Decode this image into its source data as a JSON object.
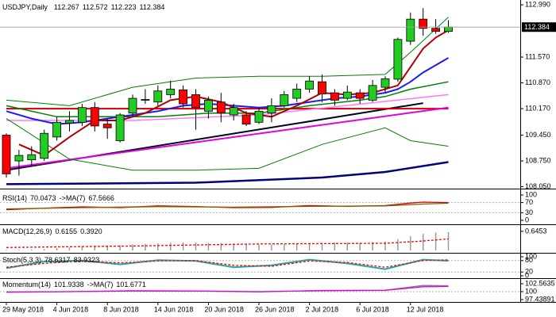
{
  "chart_data": [
    {
      "type": "candlestick",
      "title": "USDJPY,Daily",
      "categories": [
        "29 May 2018",
        null,
        null,
        null,
        "4 Jun 2018",
        null,
        null,
        null,
        "8 Jun 2018",
        null,
        null,
        null,
        "14 Jun 2018",
        null,
        null,
        null,
        "20 Jun 2018",
        null,
        null,
        null,
        "26 Jun 2018",
        null,
        null,
        null,
        "2 Jul 2018",
        null,
        null,
        null,
        "6 Jul 2018",
        null,
        null,
        null,
        "12 Jul 2018",
        null,
        null,
        null
      ],
      "open": [
        109.45,
        108.75,
        108.78,
        108.82,
        109.4,
        109.78,
        109.8,
        110.2,
        109.75,
        109.3,
        110.05,
        110.4,
        110.35,
        110.55,
        110.68,
        110.55,
        110.1,
        110.35,
        110.0,
        110.0,
        109.8,
        110.05,
        110.25,
        110.45,
        110.7,
        110.9,
        110.6,
        110.45,
        110.6,
        110.4,
        110.75,
        110.97,
        112.0,
        112.6,
        112.35,
        112.267
      ],
      "high": [
        109.5,
        109.05,
        109.15,
        109.6,
        109.95,
        110.1,
        110.3,
        110.35,
        109.9,
        110.05,
        110.55,
        110.7,
        110.8,
        110.93,
        110.8,
        110.7,
        110.5,
        110.6,
        110.3,
        110.1,
        110.2,
        110.45,
        110.65,
        110.85,
        111.05,
        111.1,
        110.7,
        110.8,
        110.7,
        110.95,
        111.05,
        112.1,
        112.78,
        112.9,
        112.6,
        112.572
      ],
      "low": [
        108.3,
        108.35,
        108.6,
        108.75,
        109.3,
        109.55,
        109.7,
        109.55,
        109.35,
        109.25,
        109.95,
        110.3,
        110.25,
        110.45,
        110.2,
        109.6,
        109.9,
        109.8,
        109.85,
        109.7,
        109.75,
        109.8,
        110.2,
        110.35,
        110.6,
        110.35,
        110.25,
        110.4,
        110.3,
        110.35,
        110.6,
        110.9,
        111.9,
        112.15,
        112.2,
        112.223
      ],
      "close": [
        108.4,
        108.9,
        108.92,
        109.5,
        109.8,
        109.85,
        110.2,
        109.7,
        109.65,
        110.0,
        110.45,
        110.42,
        110.65,
        110.7,
        110.3,
        110.2,
        110.4,
        110.05,
        110.2,
        109.75,
        110.1,
        110.25,
        110.55,
        110.7,
        110.92,
        110.57,
        110.4,
        110.62,
        110.45,
        110.8,
        110.98,
        112.05,
        112.6,
        112.35,
        112.27,
        112.384
      ],
      "up_color": "#22cc22",
      "down_color": "#ff0000",
      "ylim": [
        108.02,
        113.12
      ],
      "yticks": [
        {
          "value": 112.99,
          "label": "112.990"
        },
        {
          "value": 111.57,
          "label": "111.570"
        },
        {
          "value": 110.87,
          "label": "110.870"
        },
        {
          "value": 110.17,
          "label": "110.170"
        },
        {
          "value": 109.45,
          "label": "109.450"
        },
        {
          "value": 108.75,
          "label": "108.750"
        },
        {
          "value": 108.05,
          "label": "108.050"
        }
      ],
      "overlays": [
        {
          "color": "#000080",
          "width": 2.5,
          "x": [
            0,
            15,
            25,
            30,
            35
          ],
          "values": [
            108.12,
            108.16,
            108.3,
            108.45,
            108.72
          ]
        },
        {
          "color": "#000020",
          "width": 2,
          "x": [
            0,
            33
          ],
          "values": [
            108.5,
            110.32
          ]
        },
        {
          "color": "#cc0000",
          "width": 2,
          "x": [
            0,
            35
          ],
          "values": [
            110.17,
            110.17
          ]
        },
        {
          "color": "#e000e0",
          "width": 2,
          "x": [
            0,
            35
          ],
          "values": [
            108.55,
            110.2
          ]
        },
        {
          "color": "#ff77ff",
          "width": 1.5,
          "x": [
            0,
            10,
            20,
            35
          ],
          "values": [
            109.85,
            109.85,
            110.0,
            110.55
          ]
        },
        {
          "color": "#008000",
          "width": 1,
          "x": [
            0,
            5,
            10,
            15,
            20,
            25,
            30,
            32,
            35
          ],
          "values": [
            110.4,
            110.25,
            110.75,
            111.0,
            111.05,
            111.05,
            111.1,
            111.7,
            112.65
          ]
        },
        {
          "color": "#008000",
          "width": 1,
          "x": [
            0,
            5,
            10,
            15,
            20,
            25,
            30,
            32,
            35
          ],
          "values": [
            109.9,
            108.8,
            108.5,
            108.5,
            108.55,
            109.2,
            109.65,
            109.3,
            109.15
          ]
        },
        {
          "color": "#008000",
          "width": 1.5,
          "x": [
            0,
            4,
            8,
            12,
            16,
            20,
            24,
            28,
            30,
            32,
            35
          ],
          "values": [
            110.25,
            109.95,
            109.95,
            109.95,
            110.05,
            110.05,
            110.25,
            110.4,
            110.5,
            110.7,
            110.9
          ]
        },
        {
          "color": "#1a1aff",
          "width": 2,
          "x": [
            0,
            2,
            4,
            6,
            8,
            10,
            12,
            14,
            16,
            18,
            20,
            22,
            24,
            26,
            28,
            30,
            31,
            32,
            33,
            34,
            35
          ],
          "values": [
            110.1,
            109.9,
            109.75,
            109.8,
            109.9,
            110.0,
            110.1,
            110.25,
            110.3,
            110.25,
            110.2,
            110.25,
            110.35,
            110.45,
            110.5,
            110.6,
            110.7,
            110.9,
            111.15,
            111.35,
            111.55
          ]
        },
        {
          "color": "#b00000",
          "width": 2,
          "x": [
            1,
            3,
            5,
            7,
            9,
            11,
            13,
            15,
            17,
            19,
            21,
            23,
            25,
            27,
            29,
            31,
            32,
            33,
            34,
            35
          ],
          "values": [
            109.2,
            108.9,
            109.4,
            109.85,
            109.85,
            110.05,
            110.4,
            110.5,
            110.35,
            110.05,
            109.95,
            110.25,
            110.6,
            110.55,
            110.6,
            110.8,
            111.3,
            111.8,
            112.1,
            112.3
          ]
        }
      ]
    },
    {
      "type": "line",
      "title": "RSI(14)",
      "ma_title": "->MA(7)",
      "ylim": [
        0,
        100
      ],
      "yticks": [
        100,
        70,
        30,
        0
      ],
      "grid": true,
      "series": [
        {
          "color": "#cc0000",
          "x": [
            0,
            3,
            6,
            9,
            12,
            15,
            18,
            21,
            24,
            27,
            30,
            32,
            33,
            35
          ],
          "values": [
            42,
            48,
            53,
            50,
            57,
            54,
            50,
            51,
            58,
            55,
            58,
            68,
            72,
            70.0473
          ]
        },
        {
          "color": "#8b5a00",
          "x": [
            0,
            6,
            12,
            18,
            24,
            30,
            33,
            35
          ],
          "values": [
            45,
            50,
            54,
            52,
            55,
            57,
            64,
            67.5666
          ]
        }
      ]
    },
    {
      "type": "histogram",
      "title": "MACD(12,26,9)",
      "color": "#999999",
      "ylim": [
        0,
        0.75
      ],
      "yticks": [
        0.6453
      ],
      "values": [
        0.02,
        0.02,
        0.03,
        0.05,
        0.08,
        0.1,
        0.13,
        0.16,
        0.17,
        0.18,
        0.2,
        0.22,
        0.24,
        0.26,
        0.27,
        0.27,
        0.26,
        0.25,
        0.23,
        0.21,
        0.2,
        0.2,
        0.21,
        0.23,
        0.25,
        0.26,
        0.26,
        0.26,
        0.26,
        0.28,
        0.3,
        0.38,
        0.48,
        0.56,
        0.6,
        0.6155
      ],
      "series": [
        {
          "color": "#ff0000",
          "dash": true,
          "x": [
            0,
            10,
            20,
            30,
            33,
            35
          ],
          "values": [
            0.1,
            0.15,
            0.22,
            0.24,
            0.32,
            0.392
          ],
          "value_labels": [
            null,
            null,
            null,
            null,
            null,
            "0.3920"
          ]
        }
      ]
    },
    {
      "type": "line",
      "title": "Stoch(5,3,3)",
      "ylim": [
        0,
        100
      ],
      "yticks": [
        100,
        80,
        20,
        0
      ],
      "grid": true,
      "series": [
        {
          "color": "#20a8a8",
          "width": 2,
          "x": [
            0,
            3,
            6,
            9,
            12,
            15,
            18,
            21,
            24,
            27,
            30,
            33,
            35
          ],
          "values": [
            40,
            75,
            80,
            60,
            82,
            78,
            45,
            55,
            85,
            65,
            35,
            85,
            78.6317
          ]
        },
        {
          "color": "#ff0000",
          "dash": true,
          "x": [
            0,
            3,
            6,
            9,
            12,
            15,
            18,
            21,
            24,
            27,
            30,
            33,
            35
          ],
          "values": [
            45,
            65,
            78,
            68,
            78,
            80,
            55,
            50,
            78,
            70,
            45,
            80,
            83.9323
          ]
        }
      ]
    },
    {
      "type": "line",
      "title": "Momentum(14)",
      "ma_title": "->MA(7)",
      "ylim": [
        97.43891,
        102.5635
      ],
      "yticks": [
        102.5635,
        100,
        97.43891
      ],
      "grid": true,
      "series": [
        {
          "color": "#808080",
          "x": [
            0,
            5,
            10,
            15,
            20,
            25,
            30,
            33,
            35
          ],
          "values": [
            99.8,
            100.0,
            100.3,
            100.2,
            99.9,
            100.4,
            100.5,
            102.0,
            101.9338
          ]
        },
        {
          "color": "#e000e0",
          "x": [
            0,
            5,
            10,
            15,
            20,
            25,
            30,
            33,
            35
          ],
          "values": [
            99.9,
            100.0,
            100.2,
            100.2,
            100.0,
            100.3,
            100.4,
            101.6,
            101.6771
          ]
        }
      ]
    }
  ]
}
